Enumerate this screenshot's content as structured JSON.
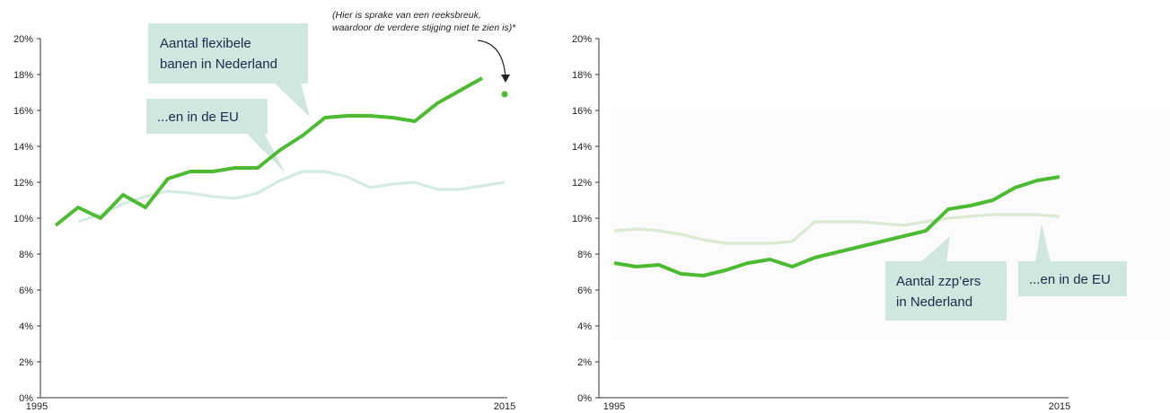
{
  "colors": {
    "nl": "#4cbb31",
    "eu": "#d4ebe0",
    "eu2": "#dbe9d2",
    "callout_bg": "#cfe7df",
    "callout_text": "#1a2a4a",
    "axis": "#333333"
  },
  "chart_data": [
    {
      "type": "line",
      "x": [
        1995,
        1996,
        1997,
        1998,
        1999,
        2000,
        2001,
        2002,
        2003,
        2004,
        2005,
        2006,
        2007,
        2008,
        2009,
        2010,
        2011,
        2012,
        2013,
        2014,
        2015
      ],
      "xticks": [
        "1995",
        "2015"
      ],
      "yticks": [
        "0%",
        "2%",
        "4%",
        "6%",
        "8%",
        "10%",
        "12%",
        "14%",
        "16%",
        "18%",
        "20%"
      ],
      "ylim": [
        0,
        20
      ],
      "grid": false,
      "series": [
        {
          "key": "nl",
          "values": [
            9.6,
            10.6,
            10.0,
            11.3,
            10.6,
            12.2,
            12.6,
            12.6,
            12.8,
            12.8,
            13.8,
            14.6,
            15.6,
            15.7,
            15.7,
            15.6,
            15.4,
            16.4,
            17.1,
            17.8,
            null
          ],
          "extra_point": {
            "x": 2015,
            "y": 16.9
          }
        },
        {
          "key": "eu",
          "values": [
            null,
            9.8,
            10.2,
            10.8,
            11.2,
            11.5,
            11.4,
            11.2,
            11.1,
            11.4,
            12.1,
            12.6,
            12.6,
            12.3,
            11.7,
            11.9,
            12.0,
            11.6,
            11.6,
            11.8,
            12.0
          ]
        }
      ],
      "callouts": [
        {
          "key": "nl",
          "lines": [
            "Aantal flexibele",
            "banen in Nederland"
          ]
        },
        {
          "key": "eu",
          "lines": [
            "...en in de EU"
          ]
        }
      ],
      "note": [
        "(Hier is sprake van een reeksbreuk,",
        "waardoor de verdere stijging niet te zien is)*"
      ]
    },
    {
      "type": "line",
      "x": [
        1995,
        1996,
        1997,
        1998,
        1999,
        2000,
        2001,
        2002,
        2003,
        2004,
        2005,
        2006,
        2007,
        2008,
        2009,
        2010,
        2011,
        2012,
        2013,
        2014,
        2015
      ],
      "xticks": [
        "1995",
        "2015"
      ],
      "yticks": [
        "0%",
        "2%",
        "4%",
        "6%",
        "8%",
        "10%",
        "12%",
        "14%",
        "16%",
        "18%",
        "20%"
      ],
      "ylim": [
        0,
        20
      ],
      "grid": false,
      "series": [
        {
          "key": "nl",
          "values": [
            7.5,
            7.3,
            7.4,
            6.9,
            6.8,
            7.1,
            7.5,
            7.7,
            7.3,
            7.8,
            8.1,
            8.4,
            8.7,
            9.0,
            9.3,
            10.5,
            10.7,
            11.0,
            11.7,
            12.1,
            12.3
          ]
        },
        {
          "key": "eu",
          "values": [
            9.3,
            9.4,
            9.3,
            9.1,
            8.8,
            8.6,
            8.6,
            8.6,
            8.7,
            9.8,
            9.8,
            9.8,
            9.7,
            9.6,
            9.8,
            10.0,
            10.1,
            10.2,
            10.2,
            10.2,
            10.1
          ]
        }
      ],
      "callouts": [
        {
          "key": "nl",
          "lines": [
            "Aantal zzp’ers",
            "in Nederland"
          ]
        },
        {
          "key": "eu",
          "lines": [
            "...en in de EU"
          ]
        }
      ]
    }
  ]
}
